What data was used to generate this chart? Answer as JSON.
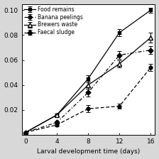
{
  "x": [
    0,
    4,
    8,
    12,
    16
  ],
  "food_remains": [
    0.002,
    0.016,
    0.045,
    0.082,
    0.1
  ],
  "food_remains_err": [
    0.0,
    0.001,
    0.003,
    0.003,
    0.002
  ],
  "banana_peelings": [
    0.002,
    0.008,
    0.021,
    0.023,
    0.054
  ],
  "banana_peelings_err": [
    0.0,
    0.001,
    0.003,
    0.002,
    0.003
  ],
  "brewers_waste": [
    0.002,
    0.016,
    0.04,
    0.057,
    0.078
  ],
  "brewers_waste_err": [
    0.0,
    0.001,
    0.003,
    0.003,
    0.004
  ],
  "faecal_sludge": [
    0.002,
    0.01,
    0.034,
    0.064,
    0.068
  ],
  "faecal_sludge_err": [
    0.0,
    0.001,
    0.003,
    0.003,
    0.003
  ],
  "xlabel": "Larval development time (days)",
  "ylim": [
    0,
    0.105
  ],
  "xlim": [
    -0.5,
    16.5
  ],
  "xticks": [
    0,
    4,
    8,
    12,
    16
  ],
  "yticks": [
    0.02,
    0.04,
    0.06,
    0.08,
    0.1
  ],
  "ytick_labels": [
    "0.02",
    "0.04",
    "0.06",
    "0.08",
    "0.10"
  ],
  "legend_labels": [
    "Food remains",
    "Banana peelings",
    "Brewers waste",
    "Faecal sludge"
  ],
  "plot_bg": "#f0f0f0",
  "fig_bg": "#d8d8d8"
}
